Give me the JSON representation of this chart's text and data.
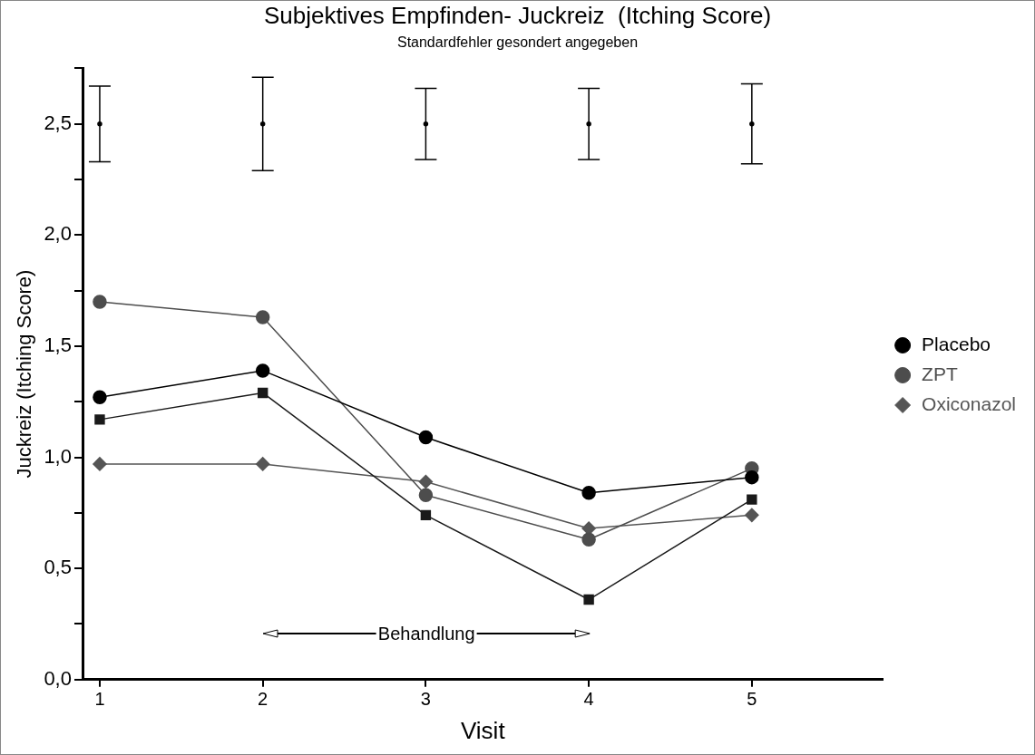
{
  "chart_data": {
    "type": "line",
    "title": "Subjektives Empfinden- Juckreiz  (Itching Score)",
    "subtitle": "Standardfehler gesondert angegeben",
    "xlabel": "Visit",
    "ylabel": "Juckreiz (Itching Score)",
    "x": [
      1,
      2,
      3,
      4,
      5
    ],
    "series": [
      {
        "name": "Placebo",
        "color": "#000000",
        "marker": "circle",
        "values": [
          1.27,
          1.39,
          1.09,
          0.84,
          0.91
        ]
      },
      {
        "name": "ZPT",
        "color": "#4d4d4d",
        "marker": "circle",
        "values": [
          1.7,
          1.63,
          0.83,
          0.63,
          0.95
        ]
      },
      {
        "color": "#1a1a1a",
        "marker": "square",
        "values": [
          1.17,
          1.29,
          0.74,
          0.36,
          0.81
        ]
      },
      {
        "name": "Oxiconazol",
        "color": "#555555",
        "marker": "diamond",
        "values": [
          0.97,
          0.97,
          0.89,
          0.68,
          0.74
        ]
      },
      {
        "type": "scatter",
        "color": "#000000",
        "values": [
          2.5,
          2.5,
          2.5,
          2.5,
          2.5
        ],
        "errors": [
          0.17,
          0.21,
          0.16,
          0.16,
          0.18
        ]
      }
    ],
    "annotations": [
      "Behandlung"
    ],
    "xlim": [
      0.9,
      5.8
    ],
    "xticks": [
      1,
      2,
      3,
      4,
      5
    ],
    "ylim": [
      0,
      2.75
    ],
    "yticks": [
      {
        "value": 0,
        "label": "0,0"
      },
      {
        "value": 0.25,
        "label": null
      },
      {
        "value": 0.5,
        "label": "0,5"
      },
      {
        "value": 0.75,
        "label": null
      },
      {
        "value": 1,
        "label": "1,0"
      },
      {
        "value": 1.25,
        "label": null
      },
      {
        "value": 1.5,
        "label": "1,5"
      },
      {
        "value": 1.75,
        "label": null
      },
      {
        "value": 2,
        "label": "2,0"
      },
      {
        "value": 2.25,
        "label": null
      },
      {
        "value": 2.5,
        "label": "2,5"
      },
      {
        "value": 2.75,
        "label": null
      }
    ],
    "grid": false,
    "legend": "right"
  }
}
